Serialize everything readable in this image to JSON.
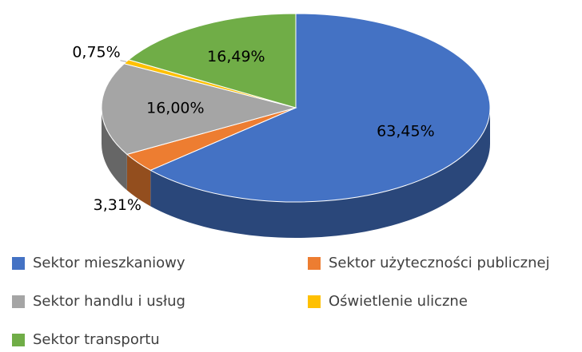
{
  "chart_data": {
    "type": "pie",
    "categories": [
      "Sektor mieszkaniowy",
      "Sektor użyteczności publicznej",
      "Sektor handlu i usług",
      "Oświetlenie uliczne",
      "Sektor transportu"
    ],
    "values": [
      63.45,
      3.31,
      16.0,
      0.75,
      16.49
    ],
    "value_labels": [
      "63,45%",
      "3,31%",
      "16,00%",
      "0,75%",
      "16,49%"
    ],
    "colors": [
      "#4472c4",
      "#ed7d31",
      "#a5a5a5",
      "#ffc000",
      "#70ad47"
    ],
    "legend": "bottom"
  }
}
